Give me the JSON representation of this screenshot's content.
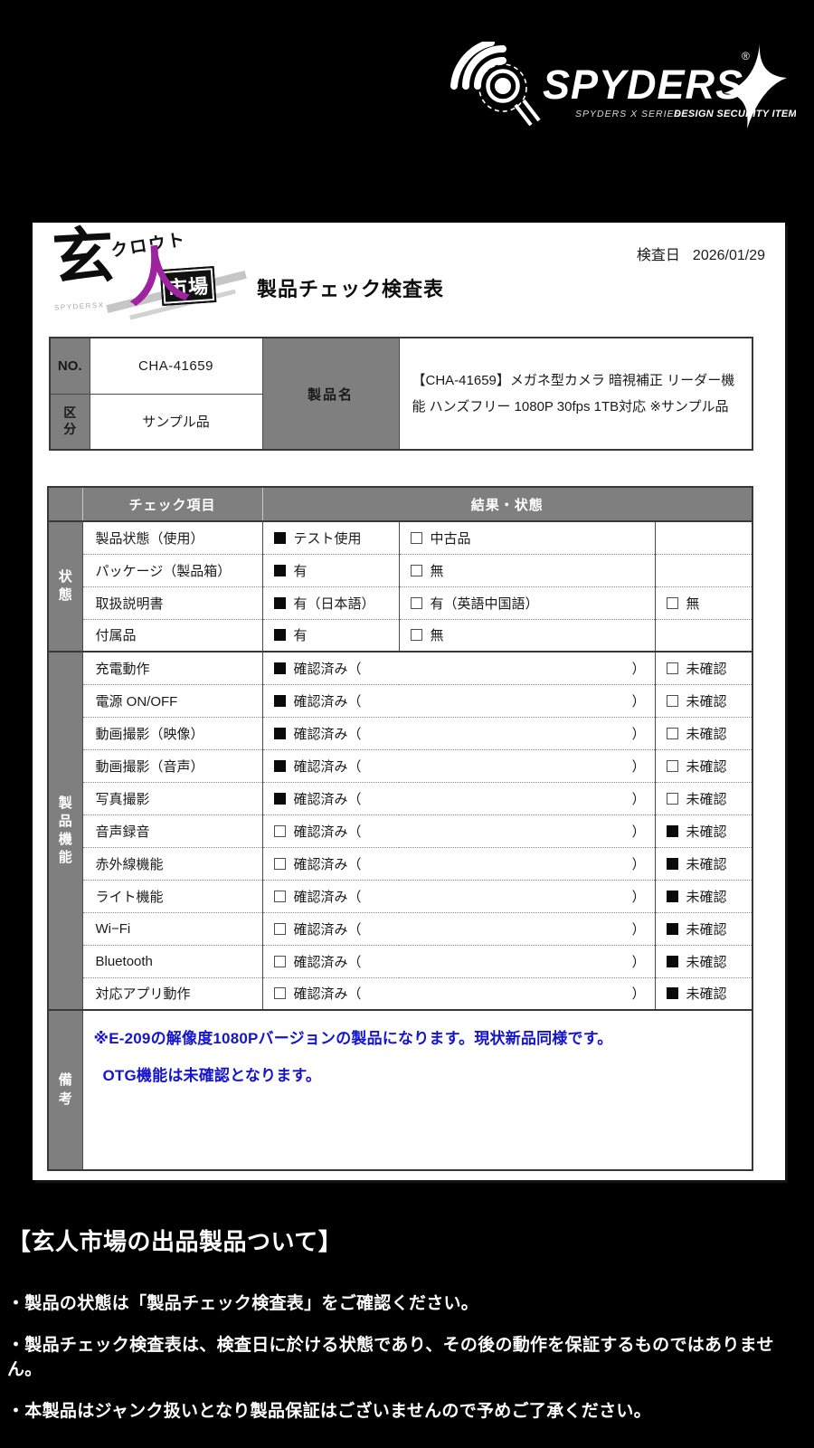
{
  "colors": {
    "background": "#000000",
    "card": "#ffffff",
    "table_gray": "#7f7f7f",
    "remark_blue": "#1414cf",
    "logo_purple": "#9e239e"
  },
  "brand": {
    "name": "SPYDERS",
    "reg_mark": "®",
    "tagline_series": "SPYDERS X SERIES",
    "tagline_item": "DESIGN SECURITY ITEM"
  },
  "kuroto_logo": {
    "char_main": "玄",
    "char_sub": "人",
    "katakana": "クロウト",
    "market": "市場",
    "small_text": "SPYDERSX"
  },
  "header": {
    "inspection_date_label": "検査日",
    "inspection_date": "2026/01/29",
    "title": "製品チェック検査表"
  },
  "product": {
    "no_label": "NO.",
    "no_value": "CHA-41659",
    "category_label_chars": [
      "区",
      "分"
    ],
    "category_value": "サンプル品",
    "name_label": "製品名",
    "name_value": "【CHA-41659】メガネ型カメラ 暗視補正 リーダー機能 ハンズフリー 1080P 30fps 1TB対応 ※サンプル品"
  },
  "check_table": {
    "header": {
      "item": "チェック項目",
      "result": "結果・状態"
    },
    "status_group_label": "状態",
    "function_group_label": "製品機能",
    "remarks_group_label": "備考",
    "labels": {
      "confirmed": "確認済み",
      "open_paren": "（",
      "close_paren": "）",
      "unconfirmed": "未確認"
    },
    "status_rows": [
      {
        "label": "製品状態（使用）",
        "cells": [
          {
            "checked": true,
            "text": "テスト使用"
          },
          {
            "checked": false,
            "text": "中古品"
          },
          null
        ]
      },
      {
        "label": "パッケージ（製品箱）",
        "cells": [
          {
            "checked": true,
            "text": "有"
          },
          {
            "checked": false,
            "text": "無"
          },
          null
        ]
      },
      {
        "label": "取扱説明書",
        "cells": [
          {
            "checked": true,
            "text": "有（日本語）"
          },
          {
            "checked": false,
            "text": "有（英語中国語）"
          },
          {
            "checked": false,
            "text": "無"
          }
        ]
      },
      {
        "label": "付属品",
        "cells": [
          {
            "checked": true,
            "text": "有"
          },
          {
            "checked": false,
            "text": "無"
          },
          null
        ]
      }
    ],
    "function_rows": [
      {
        "label": "充電動作",
        "confirmed": true
      },
      {
        "label": "電源 ON/OFF",
        "confirmed": true
      },
      {
        "label": "動画撮影（映像）",
        "confirmed": true
      },
      {
        "label": "動画撮影（音声）",
        "confirmed": true
      },
      {
        "label": "写真撮影",
        "confirmed": true
      },
      {
        "label": "音声録音",
        "confirmed": false
      },
      {
        "label": "赤外線機能",
        "confirmed": false
      },
      {
        "label": "ライト機能",
        "confirmed": false
      },
      {
        "label": "Wi−Fi",
        "confirmed": false
      },
      {
        "label": "Bluetooth",
        "confirmed": false
      },
      {
        "label": "対応アプリ動作",
        "confirmed": false
      }
    ]
  },
  "remarks": {
    "lines": [
      "※E-209の解像度1080Pバージョンの製品になります。現状新品同様です。",
      "OTG機能は未確認となります。"
    ]
  },
  "footer": {
    "heading": "【玄人市場の出品製品ついて】",
    "bullets": [
      "・製品の状態は「製品チェック検査表」をご確認ください。",
      "・製品チェック検査表は、検査日に於ける状態であり、その後の動作を保証するものではありません。",
      "・本製品はジャンク扱いとなり製品保証はございませんので予めご了承ください。"
    ]
  }
}
